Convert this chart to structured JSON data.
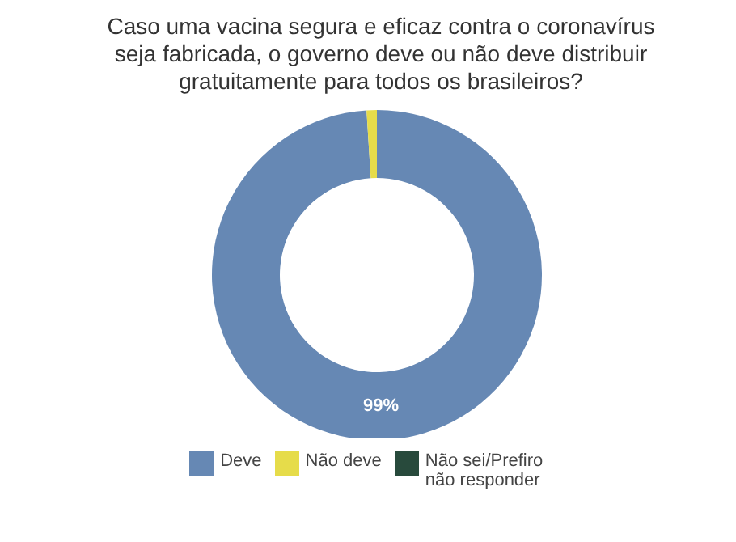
{
  "chart_data": {
    "type": "donut",
    "title": "Caso uma vacina segura e eficaz contra o coronavírus seja fabricada, o governo deve ou não deve distribuir gratuitamente para todos os brasileiros?",
    "categories": [
      "Deve",
      "Não deve",
      "Não sei/Prefiro não responder"
    ],
    "values": [
      99,
      1,
      0
    ],
    "colors": [
      "#6688b4",
      "#e6dc4a",
      "#284a3c"
    ],
    "value_labels": [
      "99%",
      null,
      null
    ],
    "legend": "bottom"
  }
}
